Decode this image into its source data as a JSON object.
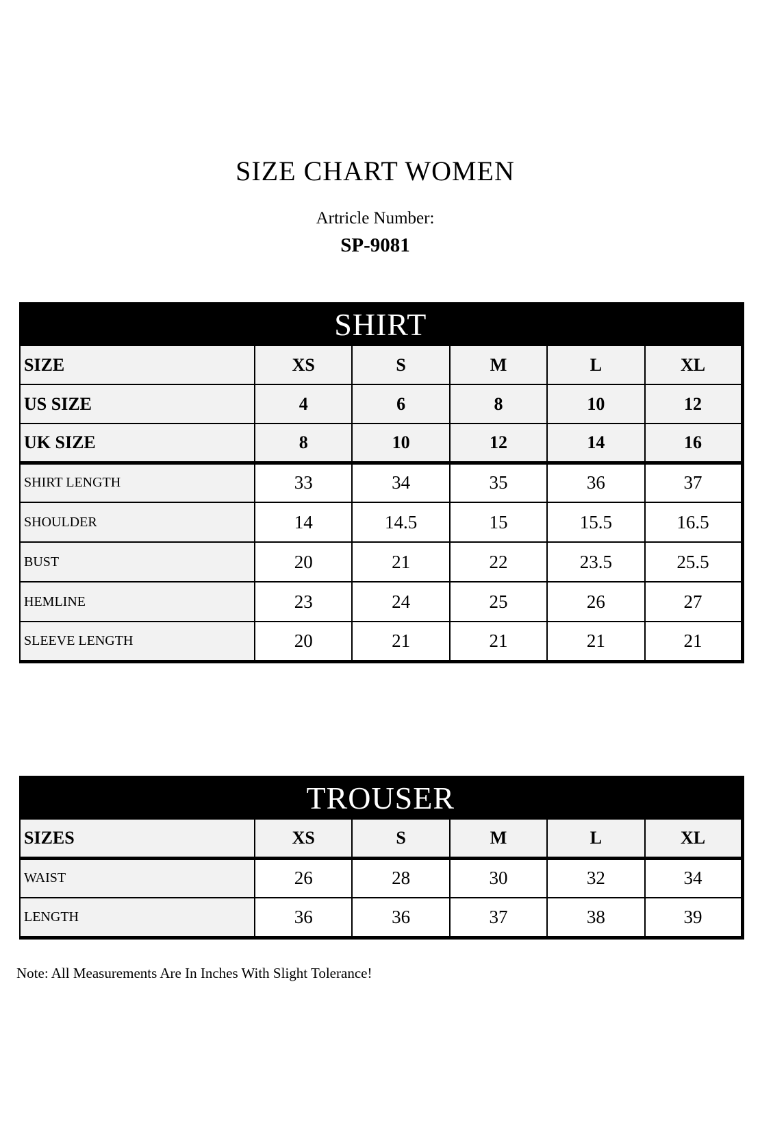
{
  "page": {
    "title": "SIZE CHART WOMEN",
    "article_label": "Artricle Number:",
    "article_number": "SP-9081",
    "note": "Note: All Measurements Are In Inches With Slight Tolerance!"
  },
  "colors": {
    "header_bar_bg": "#000000",
    "header_bar_text": "#ffffff",
    "shaded_row_bg": "#f2f2f2",
    "value_cell_bg": "#ffffff",
    "border": "#000000"
  },
  "shirt_table": {
    "title": "SHIRT",
    "size_rows": [
      {
        "label": "SIZE",
        "values": [
          "XS",
          "S",
          "M",
          "L",
          "XL"
        ]
      },
      {
        "label": "US SIZE",
        "values": [
          "4",
          "6",
          "8",
          "10",
          "12"
        ]
      },
      {
        "label": "UK SIZE",
        "values": [
          "8",
          "10",
          "12",
          "14",
          "16"
        ]
      }
    ],
    "measure_rows": [
      {
        "label": "SHIRT LENGTH",
        "values": [
          "33",
          "34",
          "35",
          "36",
          "37"
        ]
      },
      {
        "label": "SHOULDER",
        "values": [
          "14",
          "14.5",
          "15",
          "15.5",
          "16.5"
        ]
      },
      {
        "label": "BUST",
        "values": [
          "20",
          "21",
          "22",
          "23.5",
          "25.5"
        ]
      },
      {
        "label": "HEMLINE",
        "values": [
          "23",
          "24",
          "25",
          "26",
          "27"
        ]
      },
      {
        "label": "SLEEVE LENGTH",
        "values": [
          "20",
          "21",
          "21",
          "21",
          "21"
        ]
      }
    ]
  },
  "trouser_table": {
    "title": "TROUSER",
    "size_rows": [
      {
        "label": "SIZES",
        "values": [
          "XS",
          "S",
          "M",
          "L",
          "XL"
        ]
      }
    ],
    "measure_rows": [
      {
        "label": "WAIST",
        "values": [
          "26",
          "28",
          "30",
          "32",
          "34"
        ]
      },
      {
        "label": "LENGTH",
        "values": [
          "36",
          "36",
          "37",
          "38",
          "39"
        ]
      }
    ]
  }
}
